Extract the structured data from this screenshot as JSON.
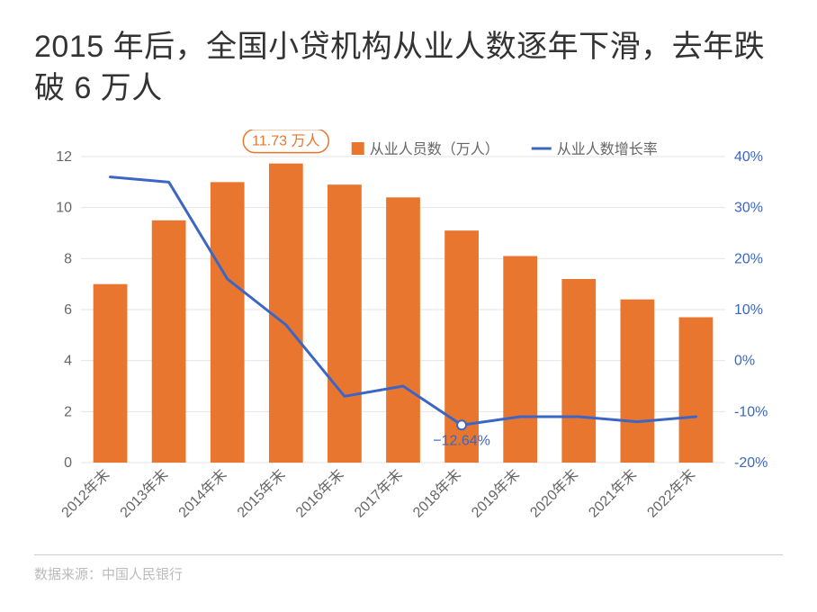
{
  "title": "2015 年后，全国小贷机构从业人数逐年下滑，去年跌破 6 万人",
  "source_label": "数据来源：中国人民银行",
  "legend": {
    "bar": "从业人员数（万人）",
    "line": "从业人数增长率"
  },
  "callouts": {
    "max_bar": "11.73 万人",
    "min_line": "−12.64%"
  },
  "chart": {
    "type": "bar_line_combo",
    "categories": [
      "2012年末",
      "2013年末",
      "2014年末",
      "2015年末",
      "2016年末",
      "2017年末",
      "2018年末",
      "2019年末",
      "2020年末",
      "2021年末",
      "2022年末"
    ],
    "bar_values": [
      7.0,
      9.5,
      11.0,
      11.73,
      10.9,
      10.4,
      9.1,
      8.1,
      7.2,
      6.4,
      5.7
    ],
    "line_values_pct": [
      36,
      35,
      16,
      7,
      -7,
      -5,
      -12.64,
      -11,
      -11,
      -12,
      -11
    ],
    "left_axis": {
      "min": 0,
      "max": 12,
      "step": 2,
      "suffix": ""
    },
    "right_axis": {
      "min": -20,
      "max": 40,
      "step": 10,
      "suffix": "%"
    },
    "colors": {
      "bar": "#e8762f",
      "line": "#3b66c4",
      "grid": "#e4e4e4",
      "background": "#ffffff",
      "axis_text": "#666666",
      "callout_stroke": "#e8762f",
      "marker_fill": "#ffffff"
    },
    "style": {
      "bar_width_ratio": 0.58,
      "line_width": 3,
      "marker_radius": 5,
      "xlabel_rotate_deg": 45
    }
  }
}
